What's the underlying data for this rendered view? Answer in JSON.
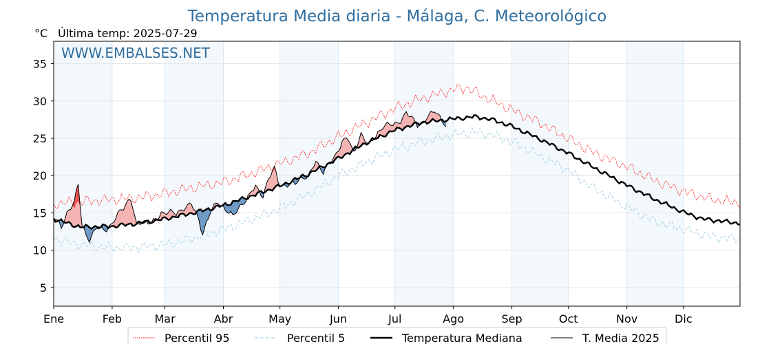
{
  "chart_data": {
    "type": "line",
    "title": "Temperatura Media diaria - Málaga, C. Meteorológico",
    "unit_label": "°C",
    "last_temp_label": "Última temp: 2025-07-29",
    "watermark": "WWW.EMBALSES.NET",
    "xlabel": "",
    "ylabel": "",
    "ylim": [
      2.5,
      38
    ],
    "yticks": [
      5,
      10,
      15,
      20,
      25,
      30,
      35
    ],
    "x_range_days": [
      1,
      365
    ],
    "months": [
      {
        "label": "Ene",
        "day": 1
      },
      {
        "label": "Feb",
        "day": 32
      },
      {
        "label": "Mar",
        "day": 60
      },
      {
        "label": "Abr",
        "day": 91
      },
      {
        "label": "May",
        "day": 121
      },
      {
        "label": "Jun",
        "day": 152
      },
      {
        "label": "Jul",
        "day": 182
      },
      {
        "label": "Ago",
        "day": 213
      },
      {
        "label": "Sep",
        "day": 244
      },
      {
        "label": "Oct",
        "day": 274
      },
      {
        "label": "Nov",
        "day": 305
      },
      {
        "label": "Dic",
        "day": 335
      }
    ],
    "grid": true,
    "legend_position": "bottom",
    "series": [
      {
        "name": "Percentil 95",
        "color": "#ff0000",
        "style": "dotted",
        "anchors": [
          [
            1,
            16.2
          ],
          [
            15,
            16.5
          ],
          [
            32,
            16.8
          ],
          [
            46,
            17.0
          ],
          [
            60,
            17.6
          ],
          [
            75,
            18.4
          ],
          [
            91,
            19.1
          ],
          [
            105,
            20.2
          ],
          [
            121,
            21.6
          ],
          [
            136,
            23.0
          ],
          [
            152,
            25.2
          ],
          [
            166,
            27.0
          ],
          [
            182,
            29.0
          ],
          [
            196,
            30.3
          ],
          [
            213,
            31.5
          ],
          [
            220,
            31.8
          ],
          [
            230,
            30.5
          ],
          [
            244,
            28.8
          ],
          [
            258,
            27.2
          ],
          [
            274,
            24.9
          ],
          [
            288,
            23.0
          ],
          [
            305,
            21.2
          ],
          [
            320,
            19.3
          ],
          [
            335,
            17.9
          ],
          [
            350,
            16.8
          ],
          [
            365,
            16.3
          ]
        ]
      },
      {
        "name": "Percentil 5",
        "color": "#a8d4e6",
        "style": "dashed",
        "anchors": [
          [
            1,
            11.6
          ],
          [
            10,
            11.0
          ],
          [
            15,
            10.7
          ],
          [
            32,
            10.3
          ],
          [
            46,
            10.4
          ],
          [
            60,
            10.7
          ],
          [
            75,
            11.6
          ],
          [
            91,
            12.8
          ],
          [
            105,
            14.0
          ],
          [
            121,
            15.6
          ],
          [
            136,
            17.5
          ],
          [
            152,
            20.0
          ],
          [
            166,
            21.7
          ],
          [
            182,
            23.5
          ],
          [
            196,
            24.5
          ],
          [
            213,
            25.5
          ],
          [
            225,
            25.8
          ],
          [
            235,
            25.4
          ],
          [
            244,
            24.5
          ],
          [
            258,
            22.8
          ],
          [
            274,
            20.7
          ],
          [
            288,
            18.2
          ],
          [
            305,
            15.8
          ],
          [
            320,
            13.8
          ],
          [
            335,
            12.8
          ],
          [
            350,
            11.8
          ],
          [
            365,
            11.5
          ]
        ]
      },
      {
        "name": "Temperatura Mediana",
        "color": "#000000",
        "style": "solid-thick",
        "anchors": [
          [
            1,
            14.2
          ],
          [
            15,
            13.1
          ],
          [
            32,
            13.2
          ],
          [
            46,
            13.6
          ],
          [
            60,
            14.2
          ],
          [
            75,
            15.0
          ],
          [
            91,
            16.0
          ],
          [
            105,
            17.2
          ],
          [
            121,
            18.6
          ],
          [
            136,
            20.2
          ],
          [
            152,
            22.3
          ],
          [
            166,
            24.3
          ],
          [
            182,
            26.1
          ],
          [
            196,
            27.1
          ],
          [
            213,
            27.6
          ],
          [
            225,
            27.9
          ],
          [
            235,
            27.4
          ],
          [
            244,
            26.6
          ],
          [
            258,
            25.0
          ],
          [
            274,
            23.0
          ],
          [
            288,
            21.0
          ],
          [
            305,
            18.7
          ],
          [
            320,
            16.8
          ],
          [
            335,
            15.1
          ],
          [
            345,
            14.2
          ],
          [
            365,
            13.6
          ]
        ]
      },
      {
        "name": "T. Media 2025",
        "color": "#000000",
        "style": "solid-thin",
        "anchors": [
          [
            1,
            14.5
          ],
          [
            5,
            13.0
          ],
          [
            8,
            15.0
          ],
          [
            12,
            16.5
          ],
          [
            14,
            18.8
          ],
          [
            16,
            13.5
          ],
          [
            18,
            12.2
          ],
          [
            20,
            11.4
          ],
          [
            24,
            13.0
          ],
          [
            28,
            12.8
          ],
          [
            32,
            13.4
          ],
          [
            35,
            14.8
          ],
          [
            40,
            16.5
          ],
          [
            42,
            16.8
          ],
          [
            45,
            13.2
          ],
          [
            48,
            14.0
          ],
          [
            52,
            13.7
          ],
          [
            55,
            13.8
          ],
          [
            58,
            15.0
          ],
          [
            62,
            15.2
          ],
          [
            66,
            14.8
          ],
          [
            70,
            15.7
          ],
          [
            74,
            16.2
          ],
          [
            78,
            14.0
          ],
          [
            80,
            12.3
          ],
          [
            84,
            15.0
          ],
          [
            88,
            16.5
          ],
          [
            92,
            15.5
          ],
          [
            96,
            14.5
          ],
          [
            100,
            16.0
          ],
          [
            104,
            17.0
          ],
          [
            108,
            18.6
          ],
          [
            112,
            17.3
          ],
          [
            115,
            19.5
          ],
          [
            118,
            21.0
          ],
          [
            121,
            18.8
          ],
          [
            125,
            18.6
          ],
          [
            129,
            19.0
          ],
          [
            132,
            19.8
          ],
          [
            136,
            19.7
          ],
          [
            140,
            22.0
          ],
          [
            144,
            20.5
          ],
          [
            148,
            21.8
          ],
          [
            150,
            22.5
          ],
          [
            154,
            24.6
          ],
          [
            157,
            25.0
          ],
          [
            160,
            23.0
          ],
          [
            164,
            25.6
          ],
          [
            168,
            24.0
          ],
          [
            172,
            25.5
          ],
          [
            176,
            26.6
          ],
          [
            179,
            26.8
          ],
          [
            182,
            27.0
          ],
          [
            184,
            27.2
          ],
          [
            186,
            27.6
          ],
          [
            188,
            28.3
          ],
          [
            191,
            27.8
          ],
          [
            194,
            26.9
          ],
          [
            197,
            27.0
          ],
          [
            200,
            28.0
          ],
          [
            203,
            28.9
          ],
          [
            206,
            27.8
          ],
          [
            209,
            26.4
          ]
        ]
      }
    ],
    "shading": {
      "above_median_color": "#f4b4b4",
      "above_p95_color": "#ee5050",
      "below_median_color": "#6f9ac5"
    }
  },
  "legend": [
    {
      "label": "Percentil 95",
      "style": "dotted",
      "color": "#ff0000"
    },
    {
      "label": "Percentil 5",
      "style": "dashed",
      "color": "#a8d4e6"
    },
    {
      "label": "Temperatura Mediana",
      "style": "solid-thick",
      "color": "#000000"
    },
    {
      "label": "T. Media 2025",
      "style": "solid-thin",
      "color": "#000000"
    }
  ]
}
